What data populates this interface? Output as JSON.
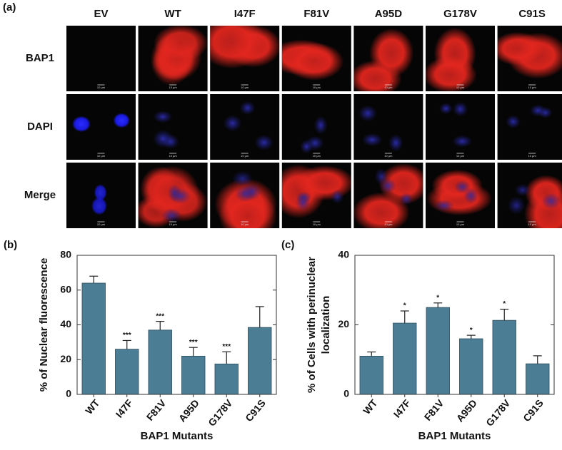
{
  "panel_a": {
    "label": "(a)",
    "columns": [
      "EV",
      "WT",
      "I47F",
      "F81V",
      "A95D",
      "G178V",
      "C91S"
    ],
    "rows": [
      "BAP1",
      "DAPI",
      "Merge"
    ],
    "scale_label": "10 µm"
  },
  "chart_data": [
    {
      "type": "bar",
      "panel_label": "(b)",
      "y_label": [
        "% of Nuclear fluorescence"
      ],
      "x_label": "BAP1 Mutants",
      "categories": [
        "WT",
        "I47F",
        "F81V",
        "A95D",
        "G178V",
        "C91S"
      ],
      "values": [
        64,
        26,
        37,
        22,
        17.5,
        38.5
      ],
      "errors": [
        4,
        5,
        5,
        5,
        7,
        12
      ],
      "annotations": [
        null,
        "***",
        "***",
        "***",
        "***",
        null
      ],
      "color": "#4b7e95",
      "ylim": [
        0,
        80
      ],
      "yticks": [
        0,
        20,
        40,
        60,
        80
      ]
    },
    {
      "type": "bar",
      "panel_label": "(c)",
      "y_label": [
        "% of Cells with perinuclear",
        "localization"
      ],
      "x_label": "BAP1 Mutants",
      "categories": [
        "WT",
        "I47F",
        "F81V",
        "A95D",
        "G178V",
        "C91S"
      ],
      "values": [
        11,
        20.5,
        25,
        16,
        21.3,
        8.8
      ],
      "errors": [
        1.2,
        3.5,
        1.3,
        1,
        3.2,
        2.3
      ],
      "annotations": [
        null,
        "*",
        "*",
        "*",
        "*",
        null
      ],
      "color": "#4b7e95",
      "ylim": [
        0,
        40
      ],
      "yticks": [
        0,
        20,
        40
      ]
    }
  ]
}
